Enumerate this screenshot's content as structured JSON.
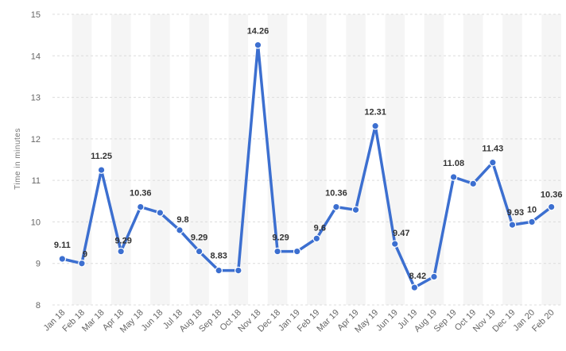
{
  "chart_data": {
    "type": "line",
    "title": "",
    "xlabel": "",
    "ylabel": "Time in minutes",
    "ylim": [
      8,
      15
    ],
    "yticks": [
      8,
      9,
      10,
      11,
      12,
      13,
      14,
      15
    ],
    "grid": true,
    "color": "#3c6fd0",
    "categories": [
      "Jan 18",
      "Feb 18",
      "Mar 18",
      "Apr 18",
      "May 18",
      "Jun 18",
      "Jul 18",
      "Aug 18",
      "Sep 18",
      "Oct 18",
      "Nov 18",
      "Dec 18",
      "Jan 19",
      "Feb 19",
      "Mar 19",
      "Apr 19",
      "May 19",
      "Jun 19",
      "Jul 19",
      "Aug 19",
      "Sep 19",
      "Oct 19",
      "Nov 19",
      "Dec 19",
      "Jan 20",
      "Feb 20"
    ],
    "values": [
      9.11,
      9,
      11.25,
      9.29,
      10.36,
      10.22,
      9.8,
      9.29,
      8.83,
      8.83,
      14.26,
      9.29,
      9.29,
      9.6,
      10.36,
      10.29,
      12.31,
      9.47,
      8.42,
      8.68,
      11.08,
      10.92,
      11.43,
      9.93,
      10,
      10.36
    ],
    "data_labels": [
      "9.11",
      "9",
      "11.25",
      "9.29",
      "10.36",
      "",
      "9.8",
      "9.29",
      "8.83",
      "",
      "14.26",
      "9.29",
      "",
      "9.6",
      "10.36",
      "",
      "12.31",
      "9.47",
      "8.42",
      "",
      "11.08",
      "",
      "11.43",
      "9.93",
      "10",
      "10.36"
    ]
  }
}
